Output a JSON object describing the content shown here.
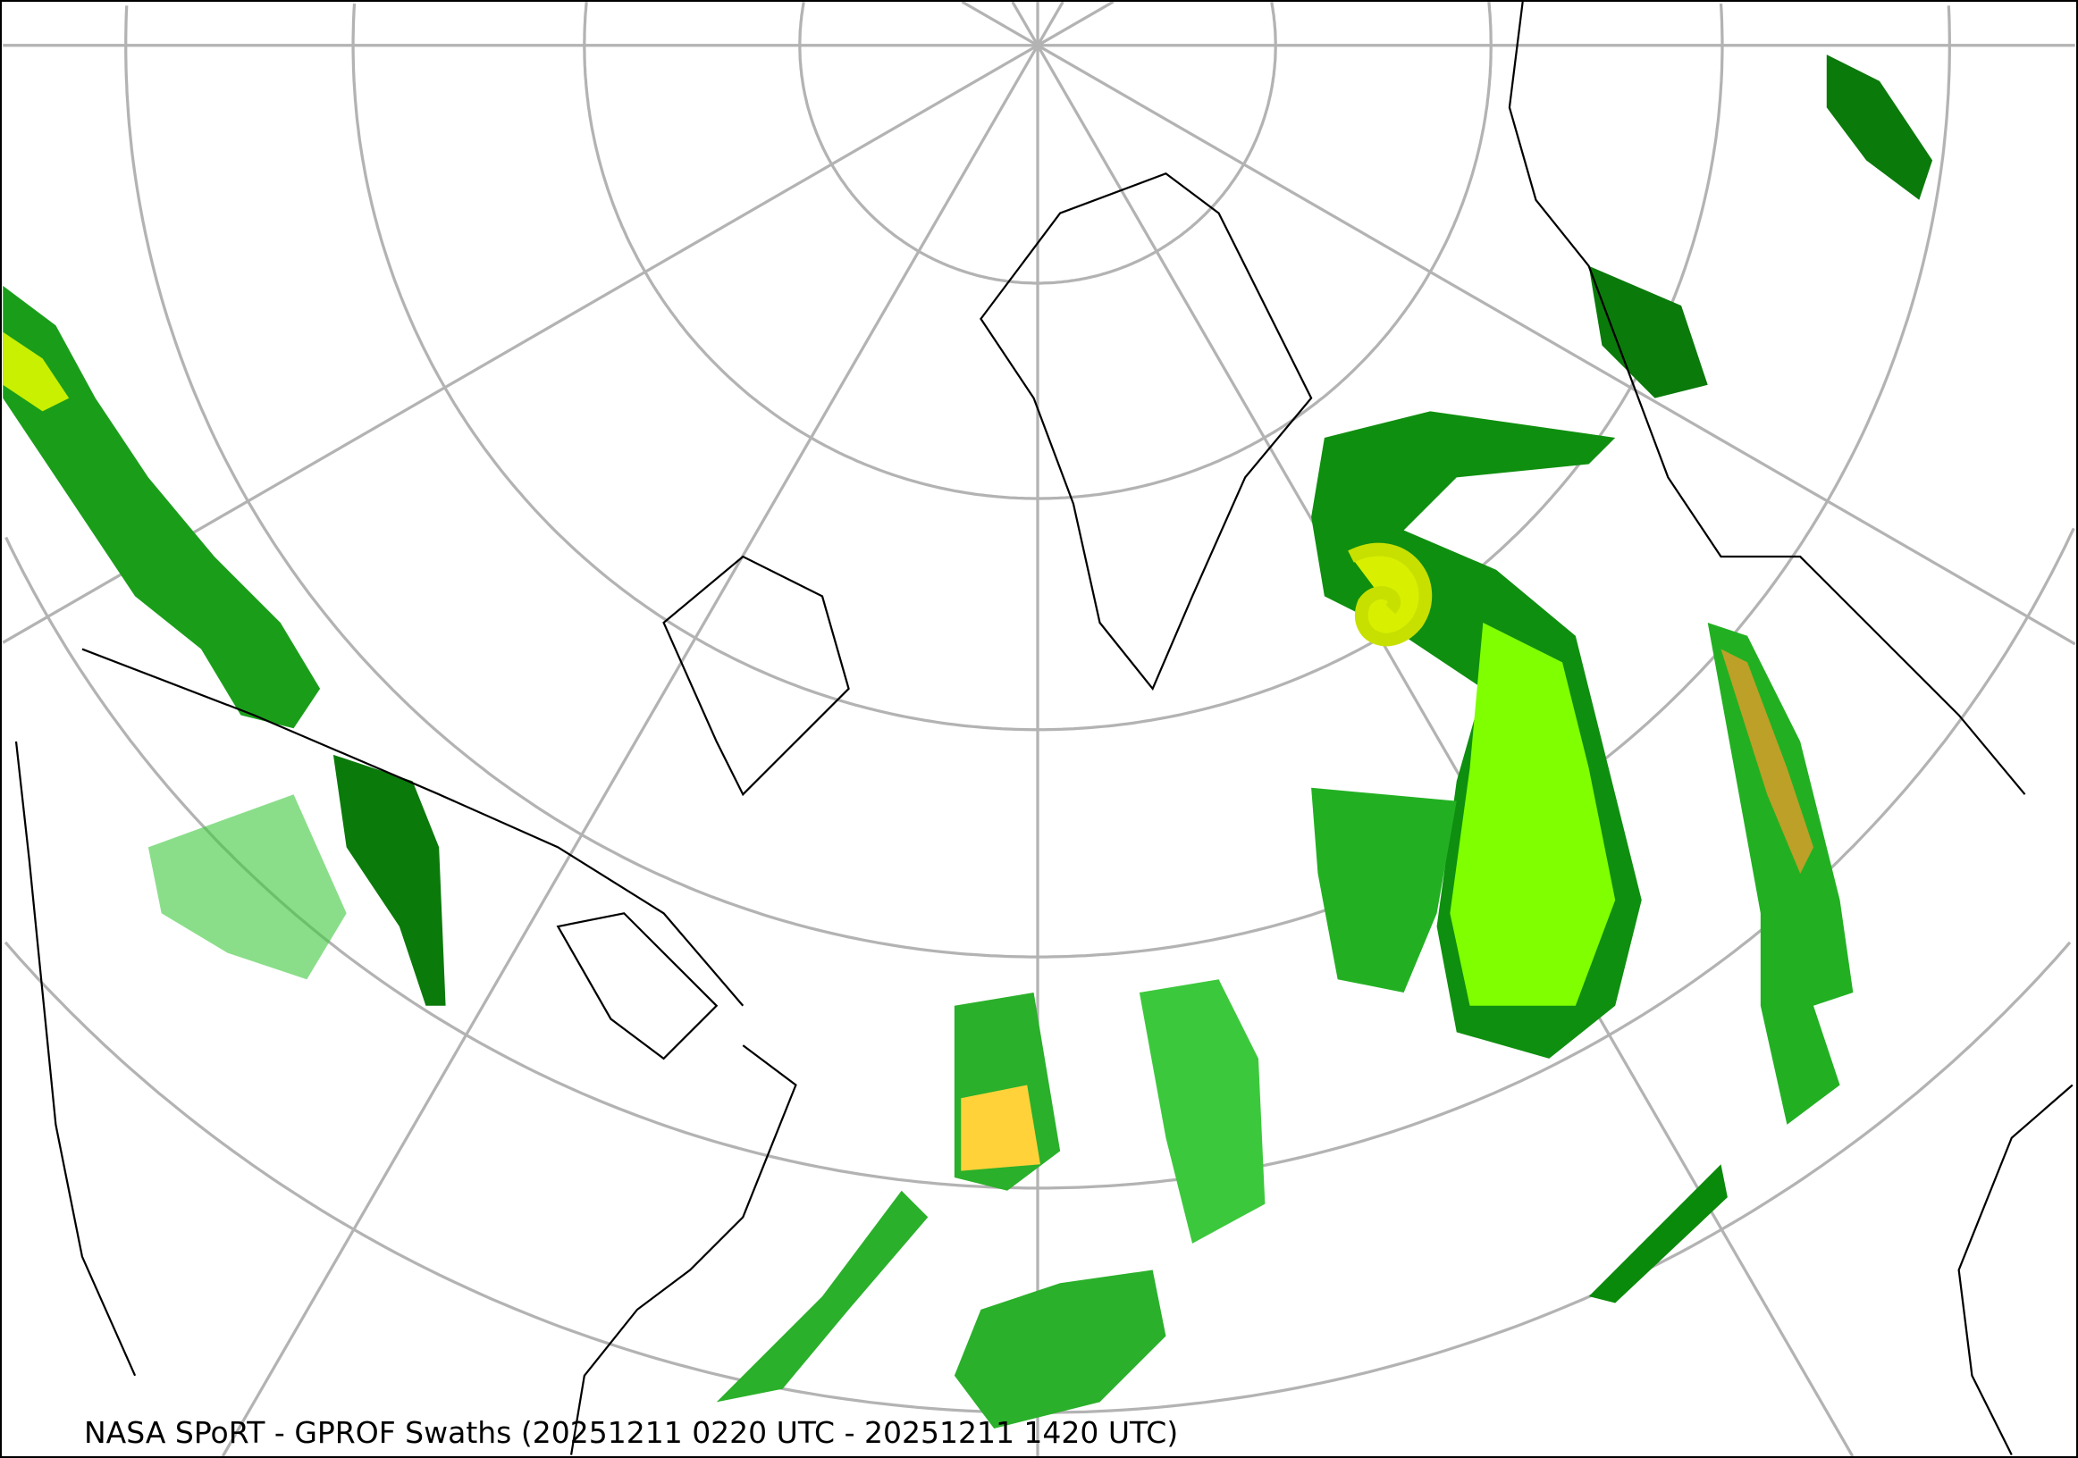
{
  "caption": "NASA SPoRT - GPROF Swaths (20251211 0220 UTC - 20251211 1420 UTC)",
  "colors": {
    "graticule": "#b3b3b3",
    "coast": "#000000",
    "precip_light": "#006400",
    "precip_mod": "#1fbf1f",
    "precip_bright": "#00ff00",
    "precip_heavy": "#ffff33",
    "precip_intense": "#ff7f00",
    "precip_extreme": "#ff2a2a"
  }
}
